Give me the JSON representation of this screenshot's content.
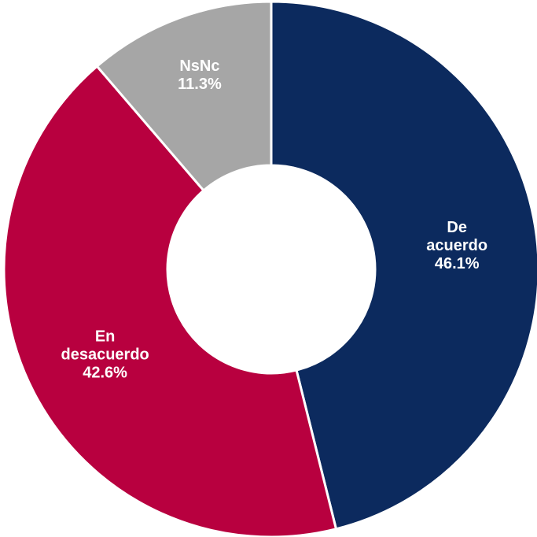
{
  "chart_data": {
    "type": "pie",
    "style": "donut",
    "slices": [
      {
        "name": "De acuerdo",
        "label_lines": [
          "De",
          "acuerdo"
        ],
        "value": 46.1,
        "value_label": "46.1%",
        "color": "#0c2a5e"
      },
      {
        "name": "En desacuerdo",
        "label_lines": [
          "En",
          "desacuerdo"
        ],
        "value": 42.6,
        "value_label": "42.6%",
        "color": "#b8003f"
      },
      {
        "name": "NsNc",
        "label_lines": [
          "NsNc"
        ],
        "value": 11.3,
        "value_label": "11.3%",
        "color": "#a6a6a6"
      }
    ],
    "start_angle_deg": 0,
    "direction": "clockwise",
    "title": "",
    "legend": "none",
    "separator_color": "#ffffff",
    "label_color": "#ffffff"
  }
}
